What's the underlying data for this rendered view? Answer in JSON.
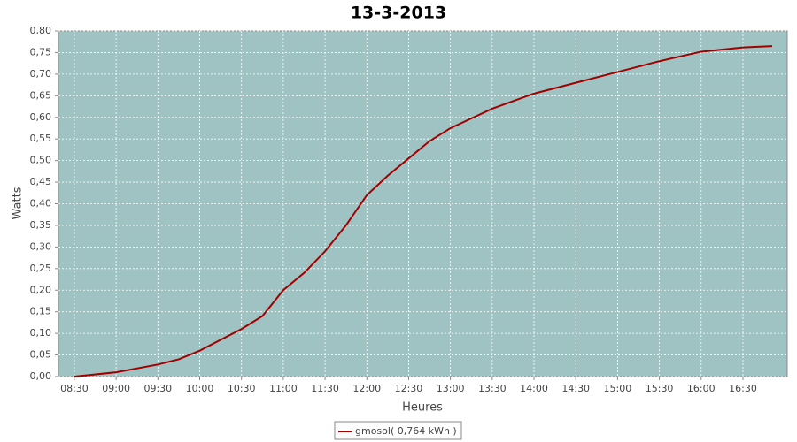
{
  "chart_data": {
    "type": "line",
    "title": "13-3-2013",
    "x_label": "Heures",
    "y_label": "Watts",
    "x": [
      8.5,
      9.0,
      9.5,
      9.75,
      10.0,
      10.5,
      10.75,
      11.0,
      11.25,
      11.5,
      11.75,
      12.0,
      12.25,
      12.5,
      12.75,
      13.0,
      13.5,
      14.0,
      14.5,
      15.0,
      15.5,
      16.0,
      16.5,
      16.85
    ],
    "series": [
      {
        "name": "gmosol( 0,764 kWh )",
        "color": "#a00000",
        "values": [
          0.0,
          0.01,
          0.028,
          0.04,
          0.06,
          0.11,
          0.14,
          0.2,
          0.24,
          0.29,
          0.35,
          0.42,
          0.465,
          0.505,
          0.545,
          0.575,
          0.62,
          0.655,
          0.68,
          0.705,
          0.73,
          0.752,
          0.762,
          0.765
        ]
      }
    ],
    "xlim": [
      8.31,
      17.03
    ],
    "ylim": [
      0,
      0.8
    ],
    "xticks": [
      {
        "value": 8.5,
        "label": "08:30"
      },
      {
        "value": 9.0,
        "label": "09:00"
      },
      {
        "value": 9.5,
        "label": "09:30"
      },
      {
        "value": 10.0,
        "label": "10:00"
      },
      {
        "value": 10.5,
        "label": "10:30"
      },
      {
        "value": 11.0,
        "label": "11:00"
      },
      {
        "value": 11.5,
        "label": "11:30"
      },
      {
        "value": 12.0,
        "label": "12:00"
      },
      {
        "value": 12.5,
        "label": "12:30"
      },
      {
        "value": 13.0,
        "label": "13:00"
      },
      {
        "value": 13.5,
        "label": "13:30"
      },
      {
        "value": 14.0,
        "label": "14:00"
      },
      {
        "value": 14.5,
        "label": "14:30"
      },
      {
        "value": 15.0,
        "label": "15:00"
      },
      {
        "value": 15.5,
        "label": "15:30"
      },
      {
        "value": 16.0,
        "label": "16:00"
      },
      {
        "value": 16.5,
        "label": "16:30"
      }
    ],
    "yticks": [
      {
        "value": 0,
        "label": "0,00"
      },
      {
        "value": 0.05,
        "label": "0,05"
      },
      {
        "value": 0.1,
        "label": "0,10"
      },
      {
        "value": 0.15,
        "label": "0,15"
      },
      {
        "value": 0.2,
        "label": "0,20"
      },
      {
        "value": 0.25,
        "label": "0,25"
      },
      {
        "value": 0.3,
        "label": "0,30"
      },
      {
        "value": 0.35,
        "label": "0,35"
      },
      {
        "value": 0.4,
        "label": "0,40"
      },
      {
        "value": 0.45,
        "label": "0,45"
      },
      {
        "value": 0.5,
        "label": "0,50"
      },
      {
        "value": 0.55,
        "label": "0,55"
      },
      {
        "value": 0.6,
        "label": "0,60"
      },
      {
        "value": 0.65,
        "label": "0,65"
      },
      {
        "value": 0.7,
        "label": "0,70"
      },
      {
        "value": 0.75,
        "label": "0,75"
      },
      {
        "value": 0.8,
        "label": "0,80"
      }
    ],
    "grid": true
  }
}
